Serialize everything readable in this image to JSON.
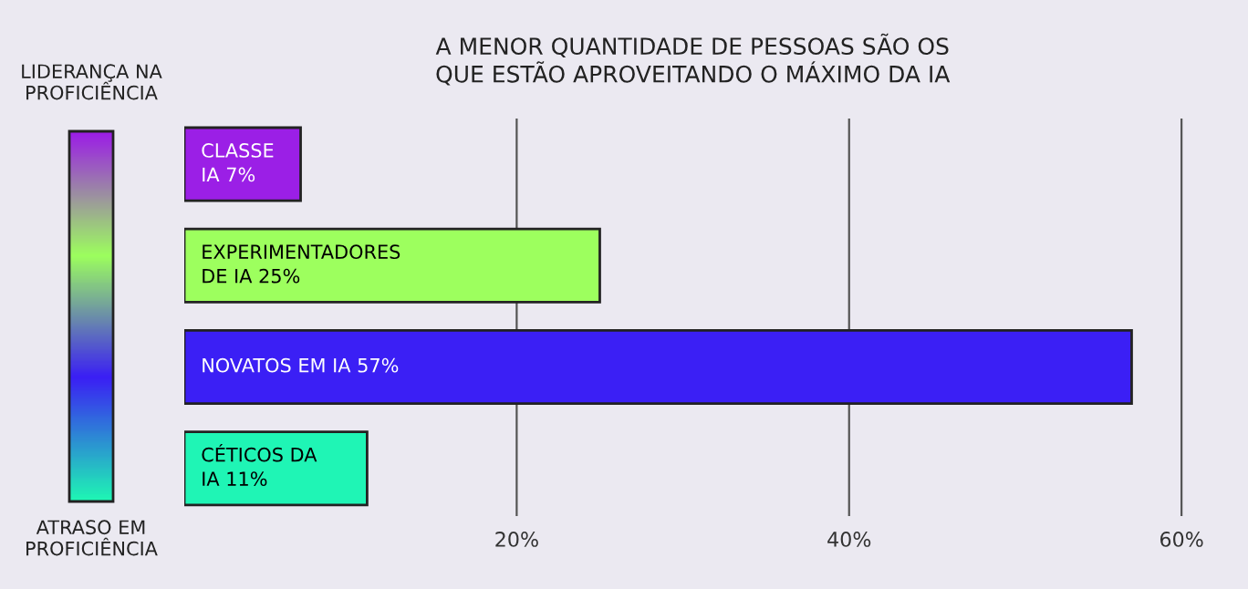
{
  "chart_data": {
    "type": "bar",
    "orientation": "horizontal",
    "title": "A MENOR QUANTIDADE DE PESSOAS SÃO OS\nQUE ESTÃO APROVEITANDO O MÁXIMO DA IA",
    "categories": [
      "CLASSE\nIA 7%",
      "EXPERIMENTADORES\nDE IA 25%",
      "NOVATOS EM IA 57%",
      "CÉTICOS DA\nIA 11%"
    ],
    "values": [
      7,
      25,
      57,
      11
    ],
    "colors": [
      "#9b1fe6",
      "#9dff5e",
      "#3b1ff5",
      "#1ff5b5"
    ],
    "xlim": [
      0,
      64
    ],
    "xticks": [
      {
        "value": 20,
        "label": "20%"
      },
      {
        "value": 40,
        "label": "40%"
      },
      {
        "value": 60,
        "label": "60%"
      }
    ],
    "grid": "x",
    "legend": false,
    "annotations": [
      "LIDERANÇA NA\nPROFICIÊNCIA",
      "ATRASO EM\nPROFICIÊNCIA"
    ]
  }
}
